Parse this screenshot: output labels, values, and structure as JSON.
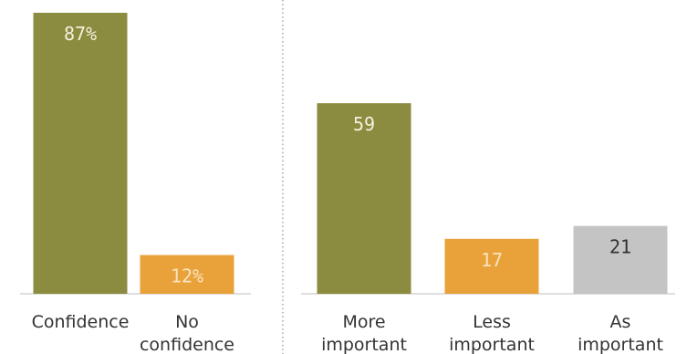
{
  "chart_data": [
    {
      "type": "bar",
      "categories": [
        [
          "Confidence"
        ],
        [
          "No",
          "confidence"
        ]
      ],
      "values": [
        87,
        12
      ],
      "value_labels": [
        "87%",
        "12%"
      ],
      "bar_colors": [
        "#8b8c3f",
        "#e9a23a"
      ],
      "label_colors": [
        "#f3f1de",
        "#fbe3bf"
      ],
      "ylim": [
        0,
        87
      ]
    },
    {
      "type": "bar",
      "categories": [
        [
          "More",
          "important"
        ],
        [
          "Less",
          "important"
        ],
        [
          "As",
          "important"
        ]
      ],
      "values": [
        59,
        17,
        21
      ],
      "value_labels": [
        "59",
        "17",
        "21"
      ],
      "bar_colors": [
        "#8b8c3f",
        "#e9a23a",
        "#c4c4c4"
      ],
      "label_colors": [
        "#f3f1de",
        "#fbe3bf",
        "#333333"
      ],
      "ylim": [
        0,
        87
      ]
    }
  ],
  "colors": {
    "axis": "#bfbfbf",
    "divider": "#a6a6a6",
    "text": "#333333"
  }
}
